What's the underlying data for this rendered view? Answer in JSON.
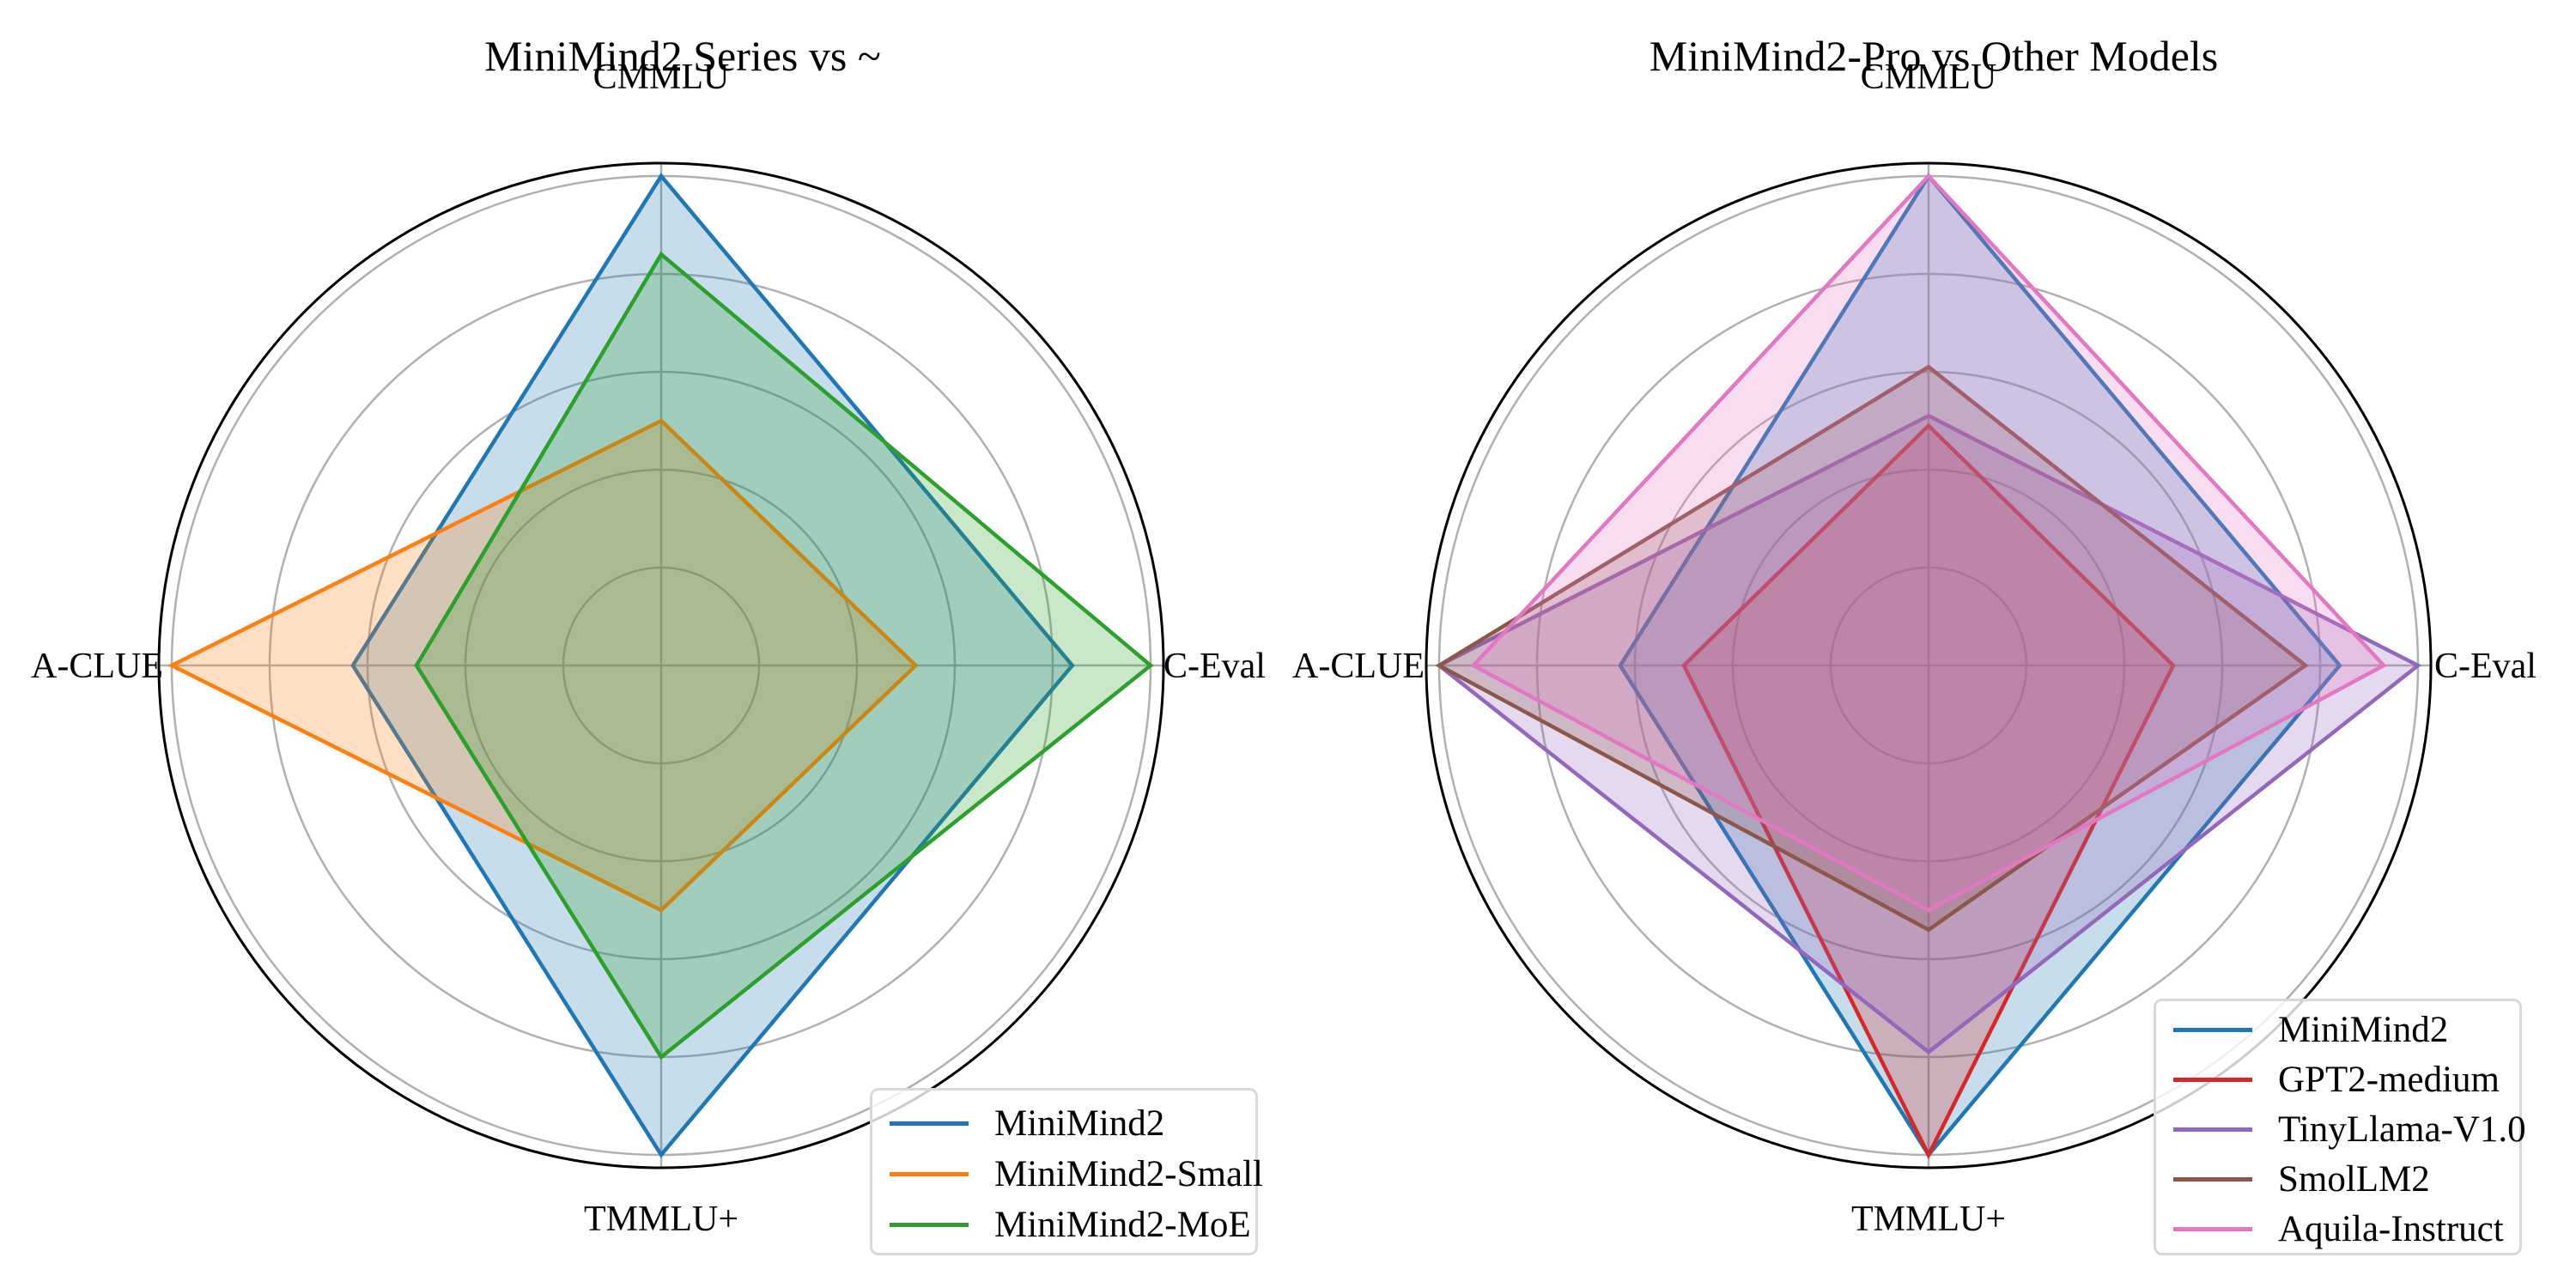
{
  "figure": {
    "background": "#ffffff",
    "grid_color": "#b0b0b0",
    "spine_color": "#000000",
    "radial_tick_labels": "none"
  },
  "chart_data": [
    {
      "type": "radar",
      "title": "MiniMind2 Series vs ~",
      "categories": [
        "CMMLU",
        "C-Eval",
        "TMMLU+",
        "A-CLUE"
      ],
      "angles_deg": [
        90,
        0,
        270,
        180
      ],
      "series": [
        {
          "name": "MiniMind2",
          "color": "#1f77b4",
          "values": [
            1.0,
            0.84,
            1.0,
            0.63
          ]
        },
        {
          "name": "MiniMind2-Small",
          "color": "#ff7f0e",
          "values": [
            0.5,
            0.52,
            0.5,
            1.0
          ]
        },
        {
          "name": "MiniMind2-MoE",
          "color": "#2ca02c",
          "values": [
            0.84,
            1.0,
            0.8,
            0.5
          ]
        }
      ],
      "r_gridlines": [
        0.2,
        0.4,
        0.6,
        0.8,
        1.0
      ],
      "r_max": 1.026,
      "grid": true,
      "tick_labels": "none",
      "fill_opacity": 0.25,
      "legend_position": "lower right",
      "value_scale": "normalized; outermost gray gridline = 1.0; values estimated from plot geometry"
    },
    {
      "type": "radar",
      "title": "MiniMind2-Pro vs Other Models",
      "categories": [
        "CMMLU",
        "C-Eval",
        "TMMLU+",
        "A-CLUE"
      ],
      "angles_deg": [
        90,
        0,
        270,
        180
      ],
      "series": [
        {
          "name": "MiniMind2",
          "color": "#1f77b4",
          "values": [
            1.0,
            0.84,
            1.0,
            0.63
          ]
        },
        {
          "name": "GPT2-medium",
          "color": "#d62728",
          "values": [
            0.49,
            0.5,
            1.0,
            0.5
          ]
        },
        {
          "name": "TinyLlama-V1.0",
          "color": "#9467bd",
          "values": [
            0.51,
            1.0,
            0.79,
            1.0
          ]
        },
        {
          "name": "SmolLM2",
          "color": "#8c564b",
          "values": [
            0.61,
            0.77,
            0.54,
            1.0
          ]
        },
        {
          "name": "Aquila-Instruct",
          "color": "#e377c2",
          "values": [
            1.0,
            0.93,
            0.5,
            0.93
          ]
        }
      ],
      "r_gridlines": [
        0.2,
        0.4,
        0.6,
        0.8,
        1.0
      ],
      "r_max": 1.026,
      "grid": true,
      "tick_labels": "none",
      "fill_opacity": 0.25,
      "legend_position": "lower right",
      "value_scale": "normalized; outermost gray gridline = 1.0; values estimated from plot geometry"
    }
  ]
}
